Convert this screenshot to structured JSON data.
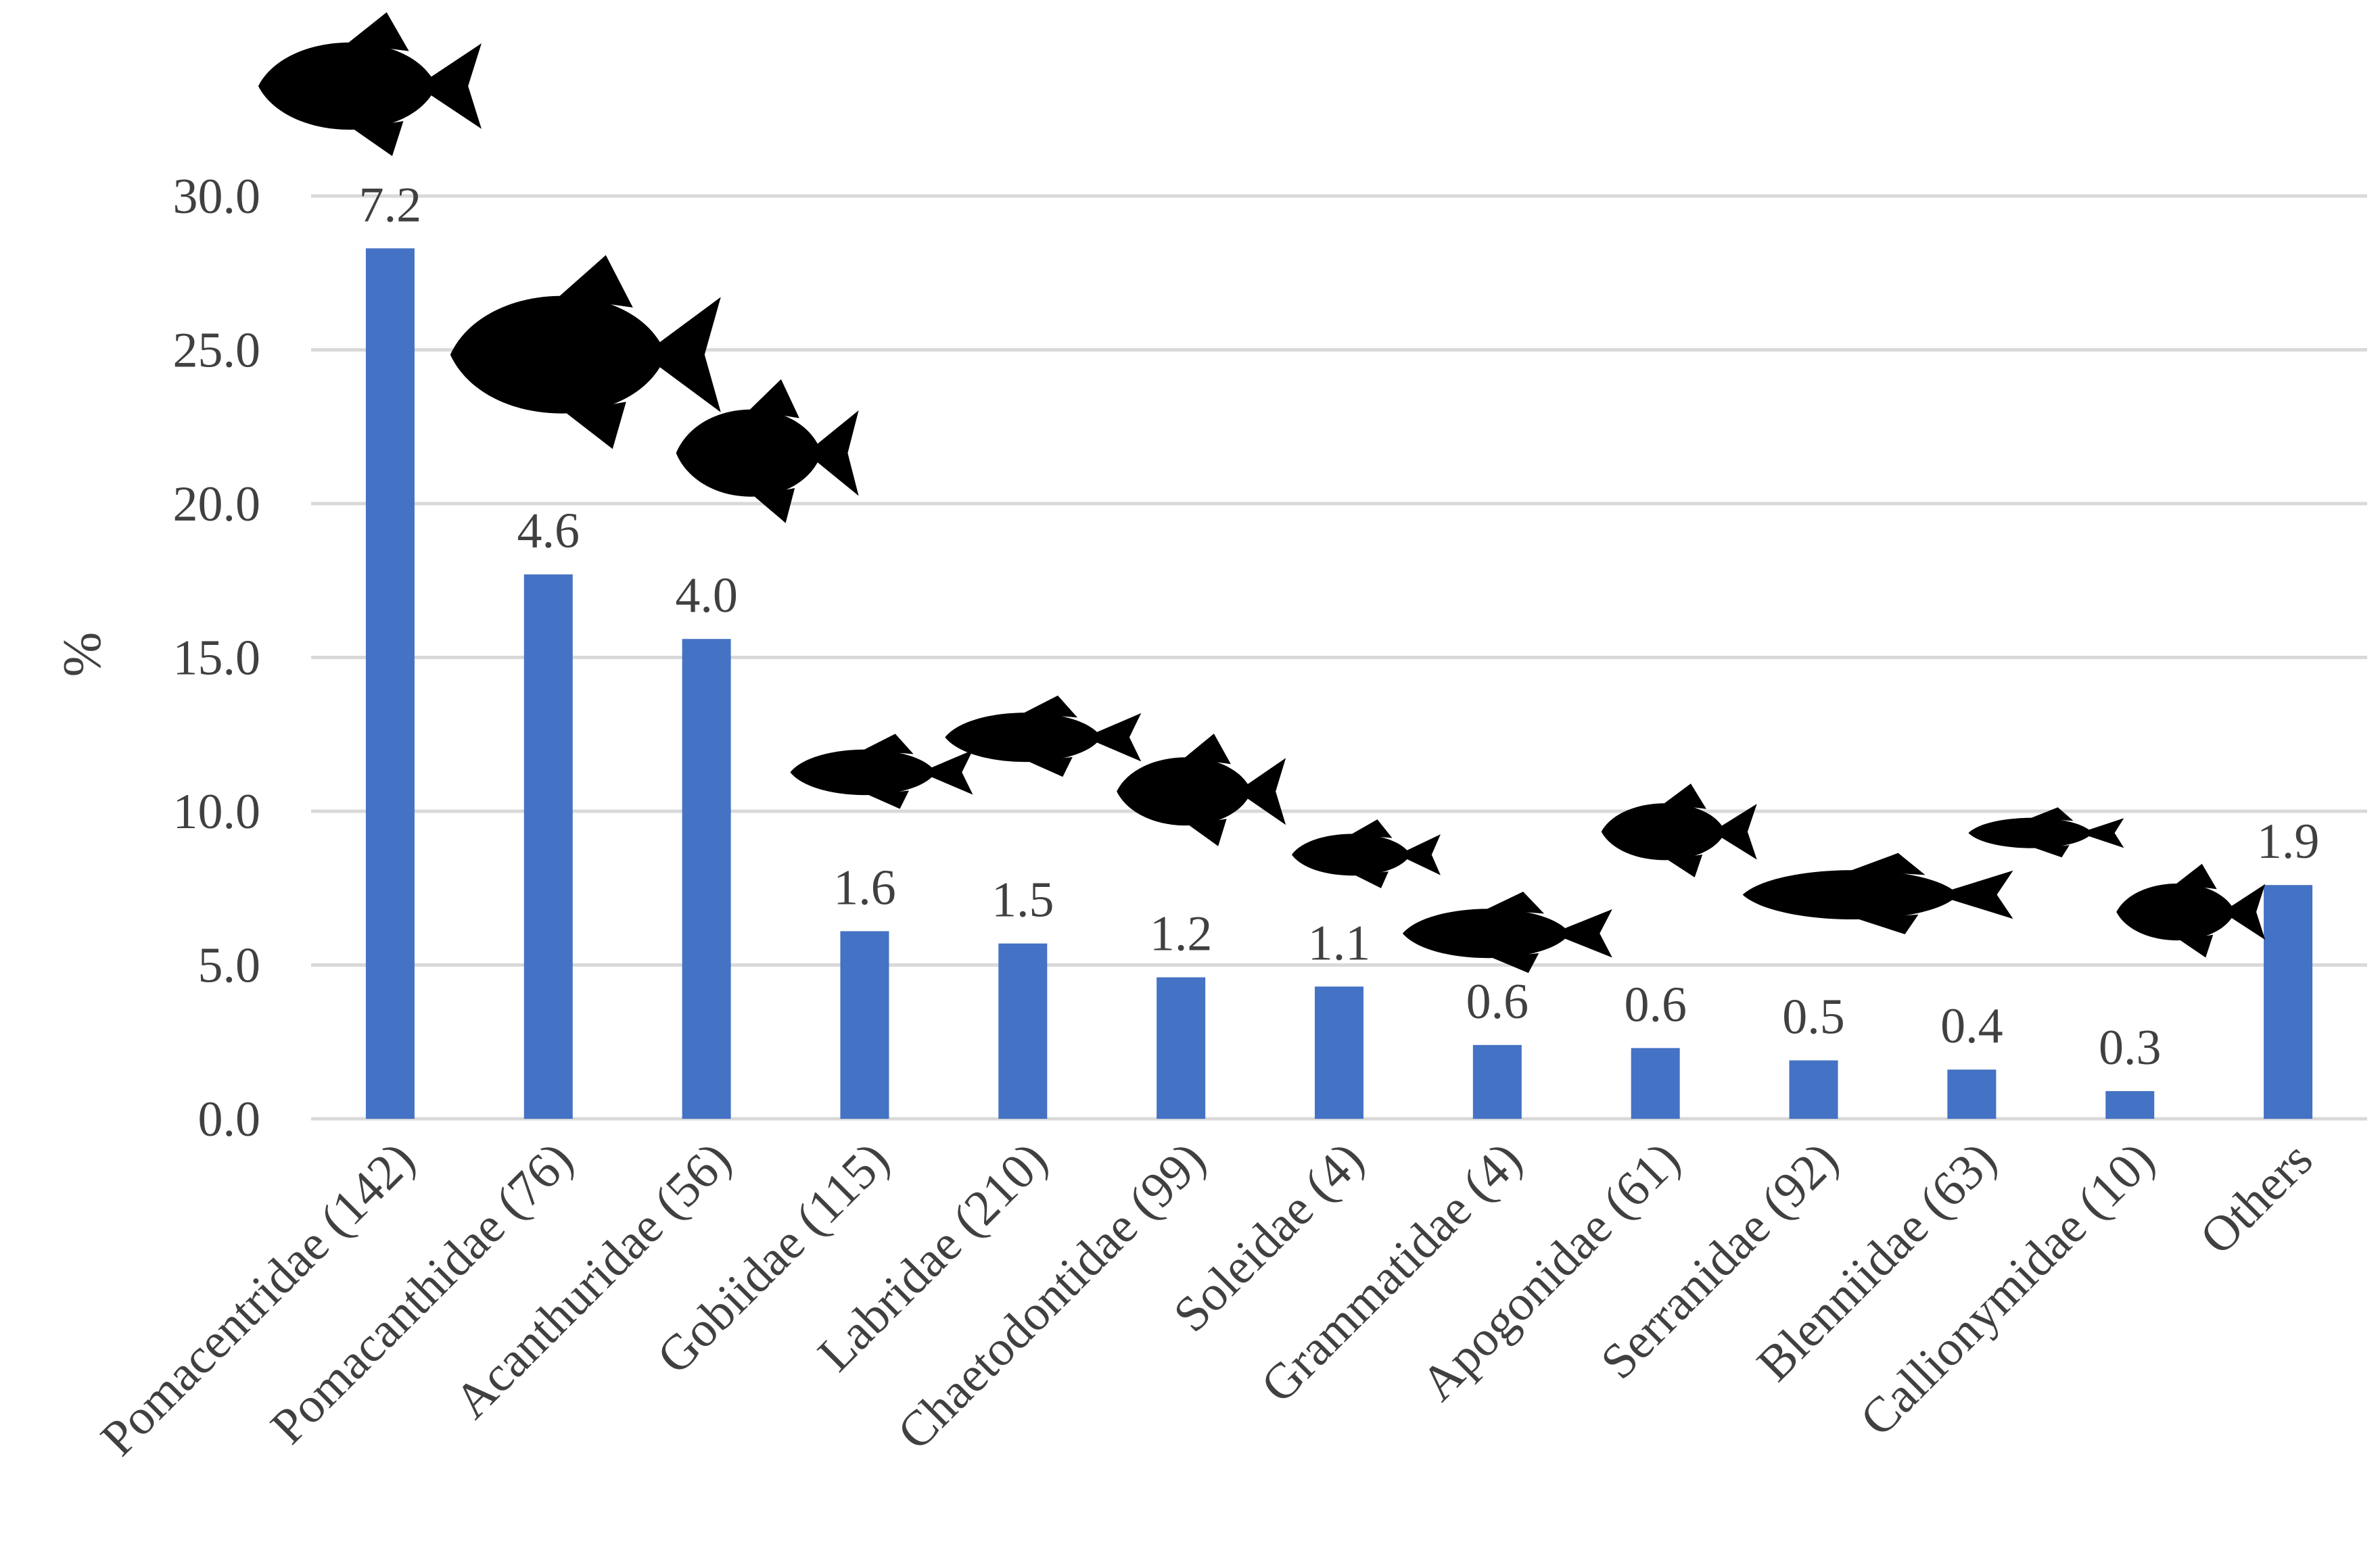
{
  "chart_data": {
    "type": "bar",
    "ylabel": "%",
    "xlabel": "",
    "ylim": [
      0,
      30
    ],
    "yticks": [
      "0.0",
      "5.0",
      "10.0",
      "15.0",
      "20.0",
      "25.0",
      "30.0"
    ],
    "grid": true,
    "legend": "none",
    "bar_color": "#4472C4",
    "gridline_color": "#D9D9D9",
    "categories": [
      "Pomacentridae (142)",
      "Pomacanthidae (76)",
      "Acanthuridae (56)",
      "Gobiidae (115)",
      "Labridae (210)",
      "Chaetodontidae (99)",
      "Soleidae (4)",
      "Grammatidae (4)",
      "Apogonidae (61)",
      "Serranidae (92)",
      "Blenniidae (63)",
      "Callionymidae (10)",
      "Others"
    ],
    "values": [
      28.3,
      17.7,
      15.6,
      6.1,
      5.7,
      4.6,
      4.3,
      2.4,
      2.3,
      1.9,
      1.6,
      0.9,
      7.6
    ],
    "data_labels": [
      "7.2",
      "4.6",
      "4.0",
      "1.6",
      "1.5",
      "1.2",
      "1.1",
      "0.6",
      "0.6",
      "0.5",
      "0.4",
      "0.3",
      "1.9"
    ],
    "icons": [
      "damselfish-silhouette-icon",
      "angelfish-silhouette-icon",
      "surgeonfish-silhouette-icon",
      "goby-silhouette-icon",
      "wrasse-silhouette-icon",
      "butterflyfish-silhouette-icon",
      "sole-silhouette-icon",
      "basslet-silhouette-icon",
      "cardinalfish-silhouette-icon",
      "grouper-silhouette-icon",
      "blenny-silhouette-icon",
      "dragonet-silhouette-icon"
    ]
  }
}
